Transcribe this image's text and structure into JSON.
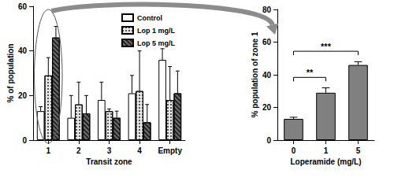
{
  "chart_data": [
    {
      "type": "bar",
      "x_label": "Transit zone",
      "y_label": "% of population",
      "categories": [
        "1",
        "2",
        "3",
        "4",
        "Empty"
      ],
      "series": [
        {
          "name": "Control",
          "color": "#ffffff",
          "values": [
            13,
            10,
            18,
            21,
            36
          ],
          "errors": [
            2,
            10,
            8,
            8,
            5
          ]
        },
        {
          "name": "Lop 1 mg/L",
          "color": "#e6e6e6",
          "values": [
            29,
            16,
            13,
            22,
            18
          ],
          "errors": [
            8,
            10,
            1,
            18,
            15
          ]
        },
        {
          "name": "Lop 5 mg/L",
          "color": "#6e6e6e",
          "values": [
            46,
            12,
            10,
            8,
            21
          ],
          "errors": [
            5,
            8,
            3,
            8,
            10
          ]
        }
      ],
      "ylim": [
        0,
        60
      ],
      "yticks": [
        0,
        20,
        40,
        60
      ],
      "grid": false,
      "legend": "upper right"
    },
    {
      "type": "bar",
      "x_label": "Loperamide (mg/L)",
      "y_label": "% population of zone 1",
      "categories": [
        "0",
        "1",
        "5"
      ],
      "values": [
        13,
        29,
        46
      ],
      "errors": [
        1,
        3,
        2
      ],
      "color": "#808080",
      "ylim": [
        0,
        80
      ],
      "yticks": [
        0,
        20,
        40,
        60,
        80
      ],
      "grid": false,
      "annotations": [
        {
          "text": "**",
          "from": "0",
          "to": "1"
        },
        {
          "text": "***",
          "from": "0",
          "to": "5"
        }
      ]
    }
  ]
}
